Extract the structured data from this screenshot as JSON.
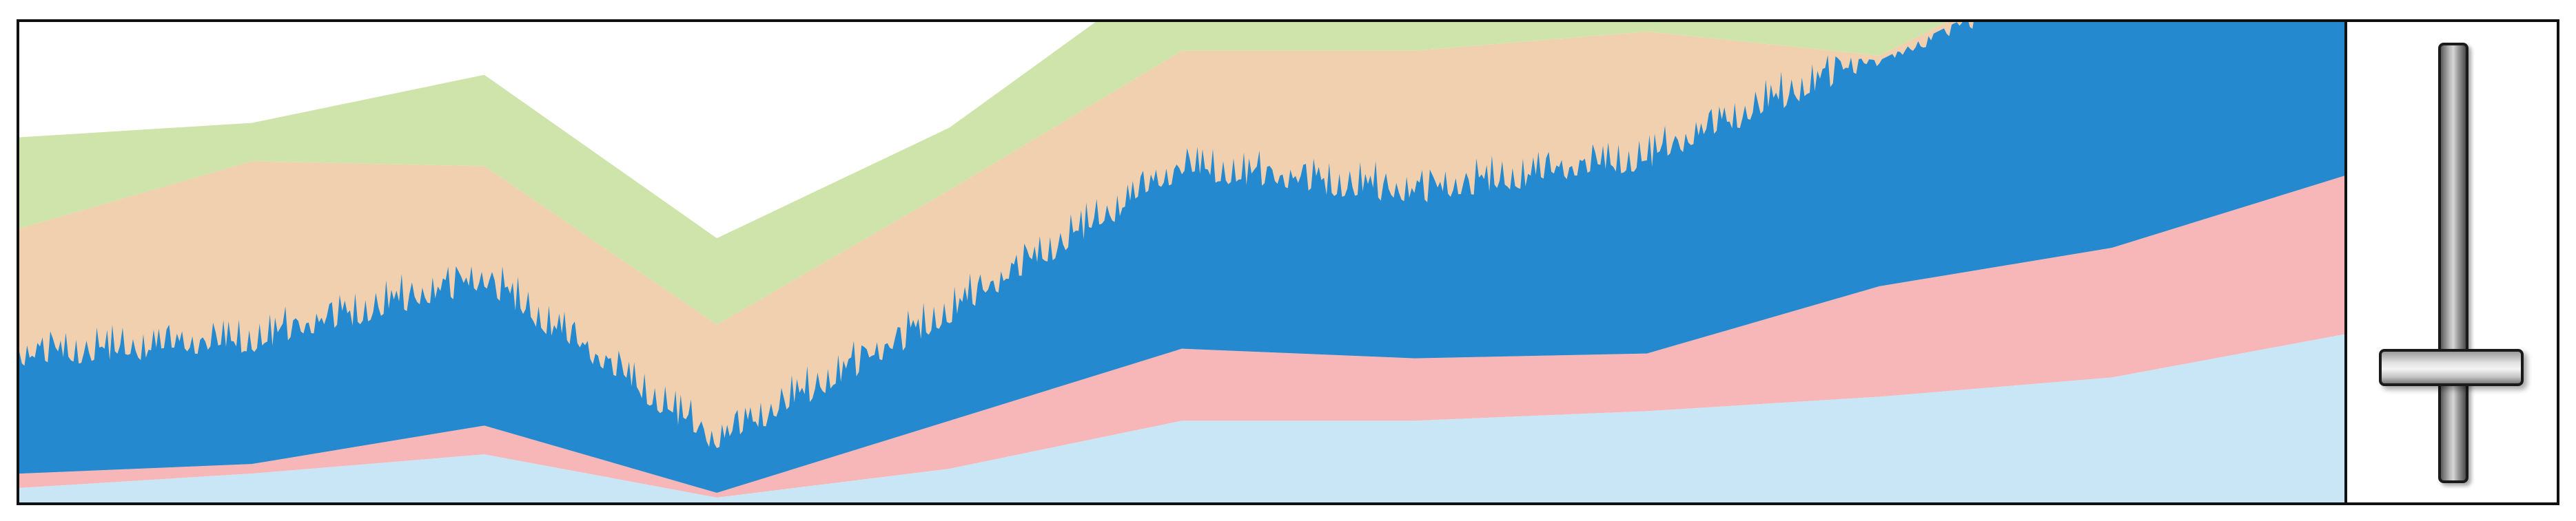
{
  "chart_data": {
    "type": "area",
    "stacked": true,
    "title": "",
    "xlabel": "",
    "ylabel": "",
    "axes_visible": false,
    "grid": false,
    "legend": "none",
    "xlim": [
      0,
      10
    ],
    "ylim": [
      0,
      100
    ],
    "x": [
      0,
      1,
      2,
      3,
      4,
      5,
      6,
      7,
      8,
      9,
      10
    ],
    "series": [
      {
        "color": "#c8e6f6",
        "values": [
          3,
          6,
          10,
          1,
          7,
          17,
          17,
          19,
          22,
          26,
          35
        ]
      },
      {
        "color": "#f7b7b8",
        "values": [
          3,
          2,
          6,
          1,
          10,
          15,
          13,
          12,
          23,
          27,
          33
        ]
      },
      {
        "color": "#2489ce",
        "base_values": [
          20,
          21,
          26,
          6,
          18,
          33,
          30,
          36,
          44,
          54,
          63
        ],
        "top_range": [
          35,
          95
        ]
      },
      {
        "color": "#f0d0ae",
        "values": [
          31,
          42,
          28,
          29,
          30,
          29,
          34,
          31,
          4,
          10,
          6
        ]
      },
      {
        "color": "#cfe4ab",
        "values": [
          19,
          8,
          19,
          18,
          13,
          19,
          15,
          13,
          23,
          34,
          31
        ]
      }
    ]
  },
  "slider": {
    "level": 0.76
  }
}
